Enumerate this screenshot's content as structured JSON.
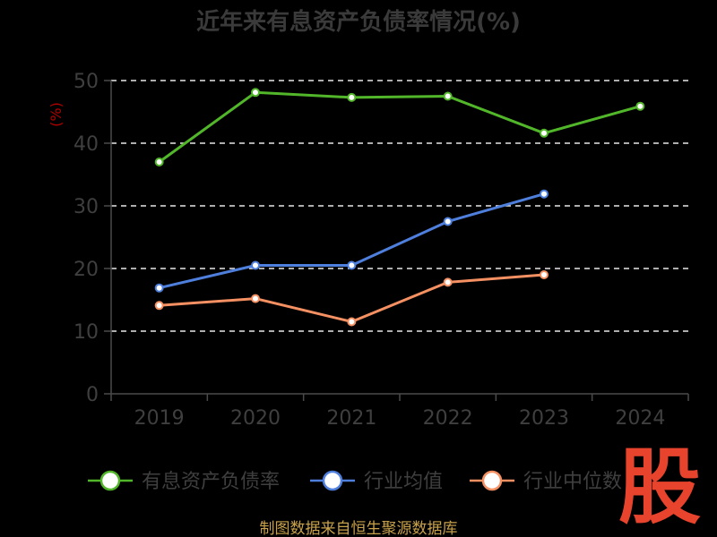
{
  "chart_data": {
    "type": "line",
    "title": "近年来有息资产负债率情况(%)",
    "ylabel": "(%)",
    "ylim": [
      0,
      50
    ],
    "yticks": [
      0,
      10,
      20,
      30,
      40,
      50
    ],
    "grid": true,
    "legend_position": "bottom",
    "categories": [
      "2019",
      "2020",
      "2021",
      "2022",
      "2023",
      "2024"
    ],
    "series": [
      {
        "name": "有息资产负债率",
        "color": "#52b62a",
        "values": [
          37.0,
          48.1,
          47.3,
          47.5,
          41.6,
          45.9
        ]
      },
      {
        "name": "行业均值",
        "color": "#4f7fdc",
        "values": [
          16.9,
          20.5,
          20.5,
          27.5,
          31.9,
          null
        ]
      },
      {
        "name": "行业中位数",
        "color": "#f59062",
        "values": [
          14.1,
          15.2,
          11.5,
          17.8,
          19.0,
          null
        ]
      }
    ]
  },
  "source": "制图数据来自恒生聚源数据库",
  "logo": {
    "text": "股",
    "color": "#e8432d"
  }
}
